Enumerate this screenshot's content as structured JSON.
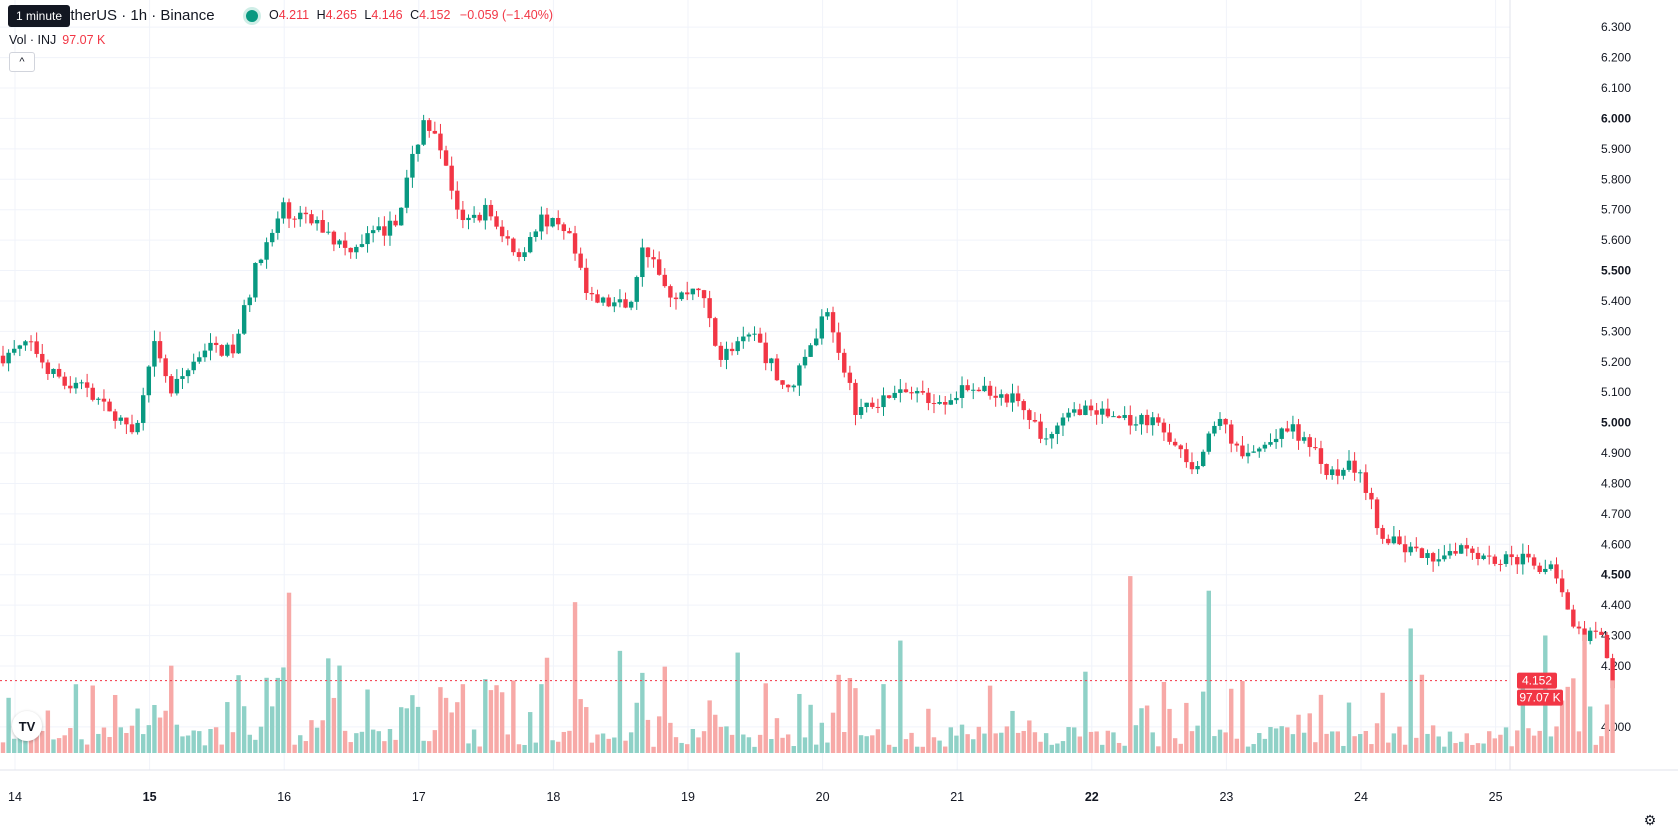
{
  "header": {
    "tooltip": "1 minute",
    "symbol": "etherUS · 1h · Binance",
    "o_label": "O",
    "o": "4.211",
    "h_label": "H",
    "h": "4.265",
    "l_label": "L",
    "l": "4.146",
    "c_label": "C",
    "c": "4.152",
    "change": "−0.059 (−1.40%)",
    "vol_label": "Vol · INJ",
    "vol_value": "97.07 K",
    "collapse_icon": "^"
  },
  "colors": {
    "up": "#089981",
    "down": "#f23645",
    "up_vol": "#8fd1c7",
    "down_vol": "#f7a9a7"
  },
  "chart_data": {
    "type": "candlestick",
    "interval": "1h",
    "y_ticks": [
      "6.300",
      "6.200",
      "6.100",
      "6.000",
      "5.900",
      "5.800",
      "5.700",
      "5.600",
      "5.500",
      "5.400",
      "5.300",
      "5.200",
      "5.100",
      "5.000",
      "4.900",
      "4.800",
      "4.700",
      "4.600",
      "4.500",
      "4.400",
      "4.300",
      "4.200",
      "4.000"
    ],
    "y_tick_values": [
      6.3,
      6.2,
      6.1,
      6.0,
      5.9,
      5.8,
      5.7,
      5.6,
      5.5,
      5.4,
      5.3,
      5.2,
      5.1,
      5.0,
      4.9,
      4.8,
      4.7,
      4.6,
      4.5,
      4.4,
      4.3,
      4.2,
      4.0
    ],
    "y_range": [
      3.96,
      6.34
    ],
    "x_ticks": [
      "14",
      "15",
      "16",
      "17",
      "18",
      "19",
      "20",
      "21",
      "22",
      "23",
      "24",
      "25"
    ],
    "bold_x_ticks": [
      "15",
      "22"
    ],
    "last_price": "4.152",
    "last_volume": "97.07 K",
    "close_keypoints": [
      [
        0,
        5.22
      ],
      [
        5,
        5.26
      ],
      [
        10,
        5.13
      ],
      [
        15,
        5.12
      ],
      [
        20,
        5.0
      ],
      [
        24,
        4.99
      ],
      [
        27,
        5.25
      ],
      [
        30,
        5.1
      ],
      [
        36,
        5.25
      ],
      [
        41,
        5.23
      ],
      [
        45,
        5.5
      ],
      [
        50,
        5.7
      ],
      [
        56,
        5.65
      ],
      [
        61,
        5.57
      ],
      [
        64,
        5.6
      ],
      [
        70,
        5.65
      ],
      [
        75,
        6.0
      ],
      [
        78,
        5.9
      ],
      [
        82,
        5.65
      ],
      [
        86,
        5.7
      ],
      [
        92,
        5.55
      ],
      [
        96,
        5.68
      ],
      [
        101,
        5.6
      ],
      [
        105,
        5.4
      ],
      [
        112,
        5.38
      ],
      [
        114,
        5.6
      ],
      [
        119,
        5.4
      ],
      [
        124,
        5.45
      ],
      [
        128,
        5.22
      ],
      [
        134,
        5.28
      ],
      [
        140,
        5.1
      ],
      [
        143,
        5.22
      ],
      [
        147,
        5.38
      ],
      [
        152,
        5.05
      ],
      [
        160,
        5.1
      ],
      [
        168,
        5.08
      ],
      [
        174,
        5.12
      ],
      [
        180,
        5.08
      ],
      [
        186,
        4.95
      ],
      [
        192,
        5.05
      ],
      [
        198,
        5.02
      ],
      [
        206,
        5.0
      ],
      [
        212,
        4.85
      ],
      [
        217,
        5.0
      ],
      [
        221,
        4.88
      ],
      [
        230,
        4.98
      ],
      [
        236,
        4.85
      ],
      [
        242,
        4.85
      ],
      [
        246,
        4.62
      ],
      [
        254,
        4.55
      ],
      [
        260,
        4.6
      ],
      [
        266,
        4.55
      ],
      [
        272,
        4.55
      ],
      [
        277,
        4.5
      ],
      [
        280,
        4.32
      ],
      [
        285,
        4.28
      ],
      [
        287,
        4.15
      ]
    ],
    "total_bars": 288
  }
}
